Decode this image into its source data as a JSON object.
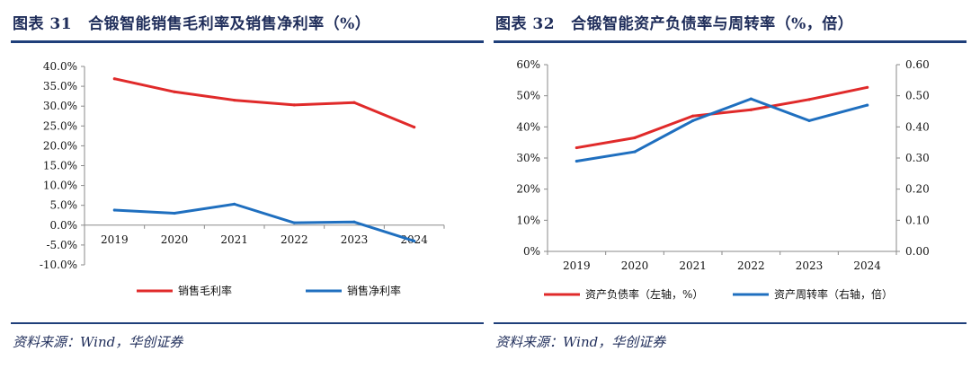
{
  "left": {
    "figure_label": "图表 31",
    "figure_title": "合锻智能销售毛利率及销售净利率（%）",
    "source": "资料来源：Wind，华创证券"
  },
  "right": {
    "figure_label": "图表 32",
    "figure_title": "合锻智能资产负债率与周转率（%，倍）",
    "source": "资料来源：Wind，华创证券"
  },
  "colors": {
    "red": "#e02a2a",
    "blue": "#1f6fbf",
    "navy": "#1f3f7a"
  },
  "chart_data": [
    {
      "type": "line",
      "title": "合锻智能销售毛利率及销售净利率（%）",
      "categories": [
        "2019",
        "2020",
        "2021",
        "2022",
        "2023",
        "2024"
      ],
      "yticks": [
        "40.0%",
        "35.0%",
        "30.0%",
        "25.0%",
        "20.0%",
        "15.0%",
        "10.0%",
        "5.0%",
        "0.0%",
        "-5.0%",
        "-10.0%"
      ],
      "ylim": [
        -10,
        40
      ],
      "legend_position": "bottom",
      "grid": false,
      "series": [
        {
          "name": "销售毛利率",
          "color": "#e02a2a",
          "values": [
            36.9,
            33.6,
            31.5,
            30.3,
            30.9,
            24.7
          ]
        },
        {
          "name": "销售净利率",
          "color": "#1f6fbf",
          "values": [
            3.8,
            3.0,
            5.3,
            0.6,
            0.8,
            -4.0
          ]
        }
      ]
    },
    {
      "type": "line",
      "title": "合锻智能资产负债率与周转率（%，倍）",
      "categories": [
        "2019",
        "2020",
        "2021",
        "2022",
        "2023",
        "2024"
      ],
      "yticks_left": [
        "60%",
        "50%",
        "40%",
        "30%",
        "20%",
        "10%",
        "0%"
      ],
      "yticks_right": [
        "0.60",
        "0.50",
        "0.40",
        "0.30",
        "0.20",
        "0.10",
        "0.00"
      ],
      "ylim_left": [
        0,
        60
      ],
      "ylim_right": [
        0,
        0.6
      ],
      "legend_position": "bottom",
      "grid": false,
      "series": [
        {
          "name": "资产负债率（左轴，%）",
          "axis": "left",
          "color": "#e02a2a",
          "values": [
            33.3,
            36.5,
            43.5,
            45.5,
            48.8,
            52.7
          ]
        },
        {
          "name": "资产周转率（右轴，倍）",
          "axis": "right",
          "color": "#1f6fbf",
          "values": [
            0.29,
            0.32,
            0.42,
            0.49,
            0.42,
            0.47
          ]
        }
      ]
    }
  ]
}
